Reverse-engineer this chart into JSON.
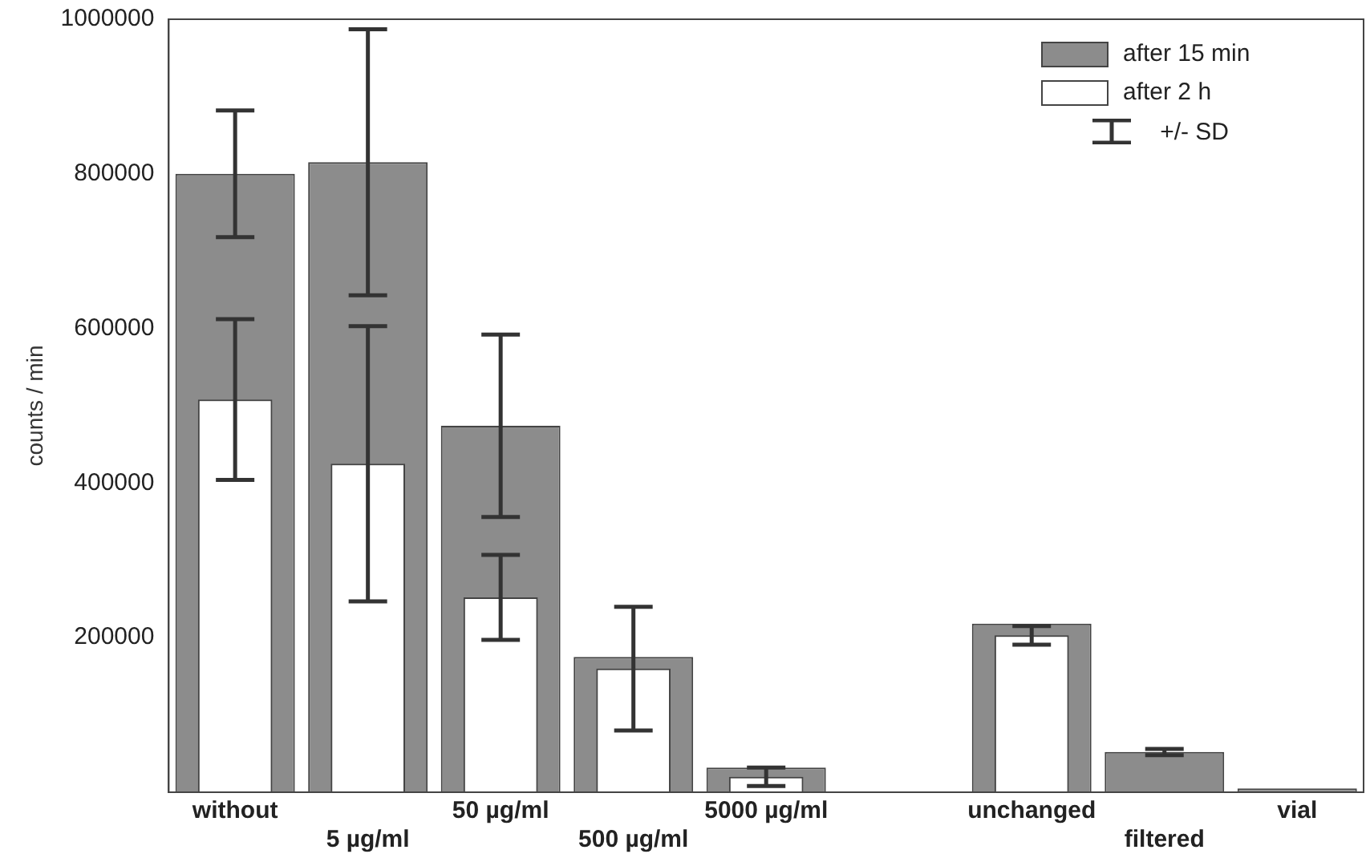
{
  "chart_data": {
    "type": "bar",
    "ylabel": "counts / min",
    "categories": [
      "without",
      "5 µg/ml",
      "50 µg/ml",
      "500 µg/ml",
      "5000 µg/ml",
      null,
      "unchanged",
      "filtered",
      "vial"
    ],
    "series": [
      {
        "name": "after 15 min",
        "color": "#8c8c8c",
        "values": [
          800000,
          815000,
          474000,
          175000,
          32000,
          null,
          218000,
          52000,
          5000
        ],
        "errors": [
          82000,
          172000,
          118000,
          null,
          null,
          null,
          null,
          4000,
          null
        ]
      },
      {
        "name": "after 2 h",
        "color": "#ffffff",
        "values": [
          508000,
          425000,
          252000,
          160000,
          20000,
          null,
          203000,
          null,
          null
        ],
        "errors": [
          104000,
          178000,
          55000,
          80000,
          12000,
          null,
          12000,
          null,
          null
        ]
      }
    ],
    "annotations": [
      "+/- SD"
    ],
    "ylim": [
      0,
      1000000
    ],
    "yticks": [
      200000,
      400000,
      600000,
      800000,
      1000000
    ],
    "grid": false,
    "legend": "top right"
  }
}
